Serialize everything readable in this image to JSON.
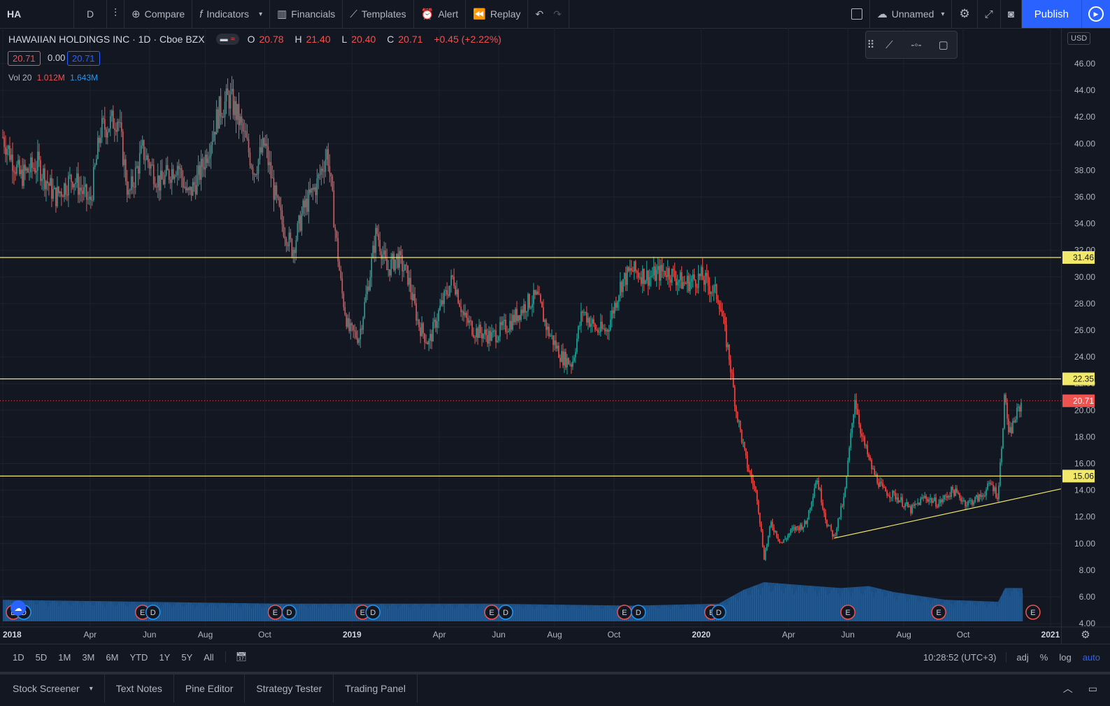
{
  "toolbar": {
    "symbol": "HA",
    "interval": "D",
    "compare": "Compare",
    "indicators": "Indicators",
    "financials": "Financials",
    "templates": "Templates",
    "alert": "Alert",
    "replay": "Replay",
    "layout_name": "Unnamed",
    "publish": "Publish"
  },
  "legend": {
    "title": "HAWAIIAN HOLDINGS INC · 1D · Cboe BZX",
    "o_label": "O",
    "o": "20.78",
    "h_label": "H",
    "h": "21.40",
    "l_label": "L",
    "l": "20.40",
    "c_label": "C",
    "c": "20.71",
    "change": "+0.45 (+2.22%)",
    "bid": "20.71",
    "spread": "0.00",
    "ask": "20.71",
    "vol_label": "Vol 20",
    "vol_1": "1.012M",
    "vol_2": "1.643M"
  },
  "currency": "USD",
  "chart_data": {
    "type": "candlestick",
    "symbol": "HA",
    "exchange": "Cboe BZX",
    "interval": "1D",
    "x_range": [
      "2018-01",
      "2020-12"
    ],
    "ylim": [
      4,
      47
    ],
    "y_ticks": [
      4,
      6,
      8,
      10,
      12,
      14,
      16,
      18,
      20,
      22,
      24,
      26,
      28,
      30,
      32,
      34,
      36,
      38,
      40,
      42,
      44,
      46
    ],
    "x_ticks": [
      {
        "label": "2018",
        "t": 0.0
      },
      {
        "label": "Apr",
        "t": 0.25
      },
      {
        "label": "Jun",
        "t": 0.42
      },
      {
        "label": "Aug",
        "t": 0.58
      },
      {
        "label": "Oct",
        "t": 0.75
      },
      {
        "label": "2019",
        "t": 1.0
      },
      {
        "label": "Apr",
        "t": 1.25
      },
      {
        "label": "Jun",
        "t": 1.42
      },
      {
        "label": "Aug",
        "t": 1.58
      },
      {
        "label": "Oct",
        "t": 1.75
      },
      {
        "label": "2020",
        "t": 2.0
      },
      {
        "label": "Apr",
        "t": 2.25
      },
      {
        "label": "Jun",
        "t": 2.42
      },
      {
        "label": "Aug",
        "t": 2.58
      },
      {
        "label": "Oct",
        "t": 2.75
      },
      {
        "label": "2021",
        "t": 3.0
      }
    ],
    "close_path": [
      [
        0.0,
        40.5
      ],
      [
        0.05,
        37.5
      ],
      [
        0.1,
        38.5
      ],
      [
        0.15,
        36.0
      ],
      [
        0.2,
        37.5
      ],
      [
        0.25,
        35.5
      ],
      [
        0.28,
        41.0
      ],
      [
        0.33,
        42.0
      ],
      [
        0.36,
        36.0
      ],
      [
        0.4,
        39.5
      ],
      [
        0.45,
        37.0
      ],
      [
        0.5,
        38.5
      ],
      [
        0.53,
        36.0
      ],
      [
        0.56,
        37.5
      ],
      [
        0.58,
        39.0
      ],
      [
        0.62,
        42.5
      ],
      [
        0.65,
        43.5
      ],
      [
        0.68,
        41.5
      ],
      [
        0.72,
        38.0
      ],
      [
        0.75,
        40.0
      ],
      [
        0.78,
        36.0
      ],
      [
        0.8,
        34.0
      ],
      [
        0.83,
        32.0
      ],
      [
        0.86,
        35.0
      ],
      [
        0.9,
        37.0
      ],
      [
        0.93,
        39.5
      ],
      [
        0.95,
        34.0
      ],
      [
        0.97,
        29.0
      ],
      [
        0.99,
        26.0
      ],
      [
        1.02,
        25.5
      ],
      [
        1.05,
        30.0
      ],
      [
        1.07,
        33.5
      ],
      [
        1.1,
        30.5
      ],
      [
        1.13,
        31.5
      ],
      [
        1.16,
        30.0
      ],
      [
        1.19,
        26.5
      ],
      [
        1.22,
        25.0
      ],
      [
        1.25,
        27.5
      ],
      [
        1.29,
        30.0
      ],
      [
        1.32,
        27.0
      ],
      [
        1.35,
        26.0
      ],
      [
        1.4,
        25.5
      ],
      [
        1.45,
        26.5
      ],
      [
        1.5,
        28.0
      ],
      [
        1.53,
        28.5
      ],
      [
        1.56,
        26.0
      ],
      [
        1.6,
        24.0
      ],
      [
        1.63,
        23.5
      ],
      [
        1.66,
        27.5
      ],
      [
        1.7,
        26.0
      ],
      [
        1.73,
        26.0
      ],
      [
        1.77,
        29.5
      ],
      [
        1.8,
        30.5
      ],
      [
        1.85,
        30.0
      ],
      [
        1.9,
        30.5
      ],
      [
        1.95,
        29.5
      ],
      [
        2.0,
        30.0
      ],
      [
        2.05,
        28.5
      ],
      [
        2.08,
        24.0
      ],
      [
        2.1,
        20.0
      ],
      [
        2.13,
        16.0
      ],
      [
        2.16,
        13.5
      ],
      [
        2.18,
        9.0
      ],
      [
        2.2,
        11.5
      ],
      [
        2.23,
        10.0
      ],
      [
        2.26,
        11.0
      ],
      [
        2.3,
        11.5
      ],
      [
        2.33,
        15.0
      ],
      [
        2.36,
        11.5
      ],
      [
        2.38,
        10.5
      ],
      [
        2.41,
        13.5
      ],
      [
        2.44,
        21.0
      ],
      [
        2.46,
        18.0
      ],
      [
        2.49,
        15.5
      ],
      [
        2.52,
        14.0
      ],
      [
        2.56,
        13.5
      ],
      [
        2.6,
        12.5
      ],
      [
        2.64,
        13.5
      ],
      [
        2.68,
        13.0
      ],
      [
        2.72,
        14.0
      ],
      [
        2.76,
        13.0
      ],
      [
        2.8,
        13.5
      ],
      [
        2.83,
        14.5
      ],
      [
        2.85,
        13.5
      ],
      [
        2.87,
        21.5
      ],
      [
        2.88,
        18.0
      ],
      [
        2.9,
        19.5
      ],
      [
        2.92,
        20.71
      ]
    ],
    "volume_ma_path": [
      [
        0.0,
        0.55
      ],
      [
        0.4,
        0.5
      ],
      [
        0.8,
        0.45
      ],
      [
        1.0,
        0.45
      ],
      [
        1.4,
        0.45
      ],
      [
        1.8,
        0.4
      ],
      [
        2.05,
        0.45
      ],
      [
        2.12,
        0.8
      ],
      [
        2.18,
        1.0
      ],
      [
        2.25,
        0.95
      ],
      [
        2.4,
        0.85
      ],
      [
        2.48,
        0.9
      ],
      [
        2.55,
        0.75
      ],
      [
        2.7,
        0.55
      ],
      [
        2.85,
        0.5
      ],
      [
        2.87,
        0.85
      ],
      [
        2.92,
        0.85
      ]
    ],
    "horizontal_lines": [
      31.46,
      22.35,
      15.06
    ],
    "trendline": {
      "start": [
        2.38,
        10.4
      ],
      "end": [
        3.03,
        14.1
      ]
    },
    "last_price": 20.71,
    "earnings_markers": [
      0.03,
      0.4,
      0.78,
      1.03,
      1.4,
      1.78,
      2.03,
      2.42,
      2.68,
      2.95
    ],
    "dividend_markers": [
      0.06,
      0.43,
      0.82,
      1.06,
      1.44,
      1.82,
      2.05
    ],
    "event_labels": {
      "earnings": "E",
      "dividend": "D"
    }
  },
  "ranges": [
    "1D",
    "5D",
    "1M",
    "3M",
    "6M",
    "YTD",
    "1Y",
    "5Y",
    "All"
  ],
  "clock": "10:28:52 (UTC+3)",
  "scale_opts": {
    "adj": "adj",
    "pct": "%",
    "log": "log",
    "auto": "auto"
  },
  "bottom_tabs": [
    "Stock Screener",
    "Text Notes",
    "Pine Editor",
    "Strategy Tester",
    "Trading Panel"
  ],
  "colors": {
    "up": "#26a69a",
    "down": "#ef5350",
    "hline": "#f2e86a",
    "volume": "#1e5a96",
    "accent": "#2962ff",
    "bg": "#131722"
  }
}
